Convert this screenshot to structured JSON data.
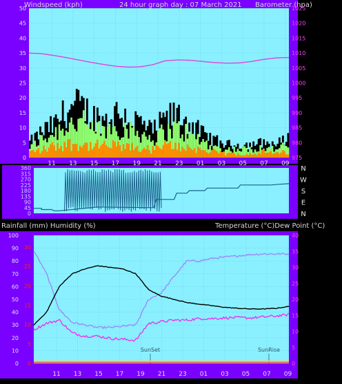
{
  "header": {
    "left_title": "Windspeed (kph)",
    "center_title": "24 hour graph day : 07 March 2021",
    "right_title": "Barometer (hpa)"
  },
  "middle": {
    "left_label": "Rainfall (mm)  Humidity (%)",
    "right_label": "Temperature (°C)Dew Point (°C)"
  },
  "colors": {
    "frame": "#7a00ff",
    "plot_bg": "#8af0ff",
    "grid": "#5ac8d8",
    "windspeed": "#000000",
    "gust": "#90ff70",
    "avg_wind": "#ff8c00",
    "barometer": "#dd44dd",
    "direction": "#1a5f8a",
    "temperature": "#000000",
    "dewpoint": "#ee33ee",
    "humidity": "#9a8aff",
    "rainfall": "#ff3333",
    "left_ticks_bottom": "#ff2222",
    "right_ticks": "#ff44ff"
  },
  "chart_data": [
    {
      "type": "line",
      "name": "wind-barometer",
      "x_ticks": [
        "11",
        "13",
        "15",
        "17",
        "19",
        "21",
        "23",
        "01",
        "03",
        "05",
        "07",
        "09"
      ],
      "y_left_ticks": [
        "0",
        "5",
        "10",
        "15",
        "20",
        "25",
        "30",
        "35",
        "40",
        "45",
        "50"
      ],
      "y_right_ticks": [
        "975",
        "980",
        "985",
        "990",
        "995",
        "1000",
        "1005",
        "1010",
        "1015",
        "1020",
        "1025"
      ],
      "ylim_left": [
        0,
        50
      ],
      "ylim_right": [
        975,
        1025
      ],
      "barometer": [
        1010,
        1009.8,
        1009.2,
        1008.5,
        1007.7,
        1006.9,
        1006.2,
        1005.6,
        1005.3,
        1005.4,
        1006.1,
        1007.4,
        1007.7,
        1007.6,
        1007.2,
        1006.8,
        1006.6,
        1006.7,
        1007.2,
        1007.9,
        1008.4,
        1008.5
      ],
      "windspeed_envelope": [
        7,
        12,
        15,
        22,
        24,
        20,
        17,
        21,
        19,
        16,
        12,
        18,
        20,
        16,
        11,
        8,
        6,
        6,
        6,
        7,
        6,
        9
      ],
      "gust_envelope": [
        5,
        9,
        12,
        16,
        17,
        14,
        13,
        15,
        14,
        12,
        9,
        13,
        14,
        11,
        8,
        5,
        4,
        4,
        4,
        5,
        4,
        6
      ],
      "avg_wind_envelope": [
        3,
        4,
        6,
        7,
        7,
        6,
        6,
        6,
        5,
        5,
        4,
        6,
        6,
        5,
        4,
        3,
        2,
        2,
        2,
        3,
        2,
        3
      ]
    },
    {
      "type": "line",
      "name": "wind-direction",
      "y_ticks": [
        "0",
        "45",
        "90",
        "135",
        "180",
        "225",
        "270",
        "315",
        "360"
      ],
      "ylim": [
        0,
        360
      ],
      "compass": [
        "N",
        "W",
        "S",
        "E",
        "N"
      ],
      "direction_steps": [
        [
          0,
          40
        ],
        [
          0.03,
          40
        ],
        [
          0.03,
          30
        ],
        [
          0.07,
          30
        ],
        [
          0.08,
          20
        ],
        [
          0.1,
          20
        ],
        [
          0.25,
          50
        ],
        [
          0.47,
          45
        ],
        [
          0.48,
          110
        ],
        [
          0.55,
          110
        ],
        [
          0.56,
          160
        ],
        [
          0.6,
          160
        ],
        [
          0.61,
          180
        ],
        [
          0.67,
          180
        ],
        [
          0.68,
          200
        ],
        [
          0.75,
          200
        ],
        [
          0.8,
          200
        ],
        [
          0.81,
          225
        ],
        [
          0.93,
          225
        ],
        [
          0.96,
          230
        ],
        [
          1.0,
          235
        ]
      ],
      "scatter_band": [
        0.12,
        0.5
      ],
      "scatter_range": [
        0,
        360
      ]
    },
    {
      "type": "line",
      "name": "temperature-humidity",
      "x_ticks": [
        "11",
        "13",
        "15",
        "17",
        "19",
        "21",
        "23",
        "01",
        "03",
        "05",
        "07",
        "09"
      ],
      "y_left_ticks": [
        "0",
        "10",
        "20",
        "30",
        "40",
        "50",
        "60",
        "70",
        "80",
        "90",
        "100"
      ],
      "y_left_ticks_red": [
        "0",
        "5",
        "10",
        "15",
        "20",
        "25",
        "30"
      ],
      "y_right_ticks": [
        "0",
        "5",
        "10",
        "15",
        "20",
        "25",
        "30",
        "35",
        "40"
      ],
      "ylim_left": [
        0,
        100
      ],
      "ylim_right": [
        0,
        40
      ],
      "annotations": [
        "SunSet",
        "SunRise"
      ],
      "temperature": [
        12,
        16,
        24,
        28,
        29.5,
        30.5,
        30,
        29.5,
        28,
        23,
        21,
        20,
        19,
        18.5,
        18,
        17.5,
        17.2,
        17,
        17,
        17.2,
        17.8
      ],
      "dewpoint": [
        10.5,
        12.5,
        13.5,
        9.5,
        8.5,
        8.5,
        7.8,
        7.5,
        7.2,
        12.5,
        13,
        13.5,
        13.5,
        14,
        14,
        14.2,
        14.3,
        14.2,
        14.5,
        14.8,
        15.2
      ],
      "humidity": [
        88,
        70,
        42,
        32,
        30,
        28,
        28,
        29,
        30,
        50,
        55,
        68,
        80,
        80,
        82,
        83,
        84,
        85,
        85.5,
        85.5,
        85.5
      ],
      "rainfall": [
        0.3,
        0.3,
        0.3,
        0.3,
        0.3,
        0.3,
        0.3,
        0.3,
        0.3,
        0.3,
        0.3,
        0.3,
        0.3,
        0.3,
        0.3,
        0.3,
        0.3,
        0.3,
        0.3,
        0.3,
        0.3
      ]
    }
  ]
}
